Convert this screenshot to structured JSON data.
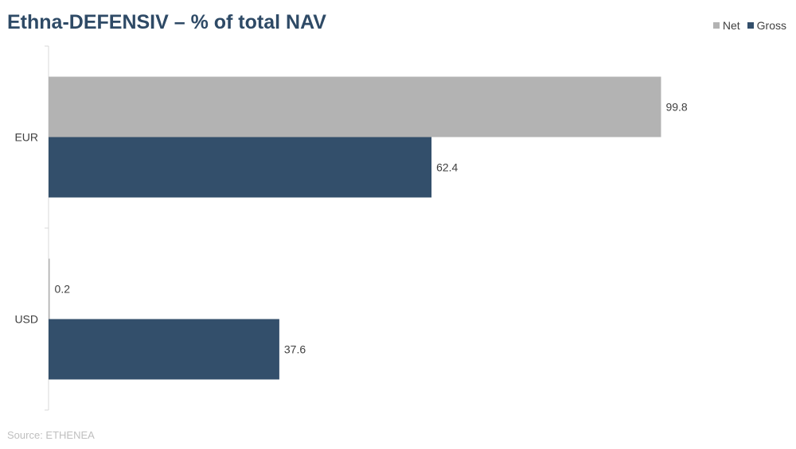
{
  "chart_data": {
    "type": "bar",
    "orientation": "horizontal",
    "title": "Ethna-DEFENSIV – % of total NAV",
    "categories": [
      "EUR",
      "USD"
    ],
    "series": [
      {
        "name": "Net",
        "values": [
          99.8,
          0.2
        ],
        "color": "#b3b3b3"
      },
      {
        "name": "Gross",
        "values": [
          62.4,
          37.6
        ],
        "color": "#334f6b"
      }
    ],
    "xlim": [
      0,
      100
    ],
    "grid": false,
    "legend_position": "top-right",
    "source": "Source: ETHENEA"
  }
}
